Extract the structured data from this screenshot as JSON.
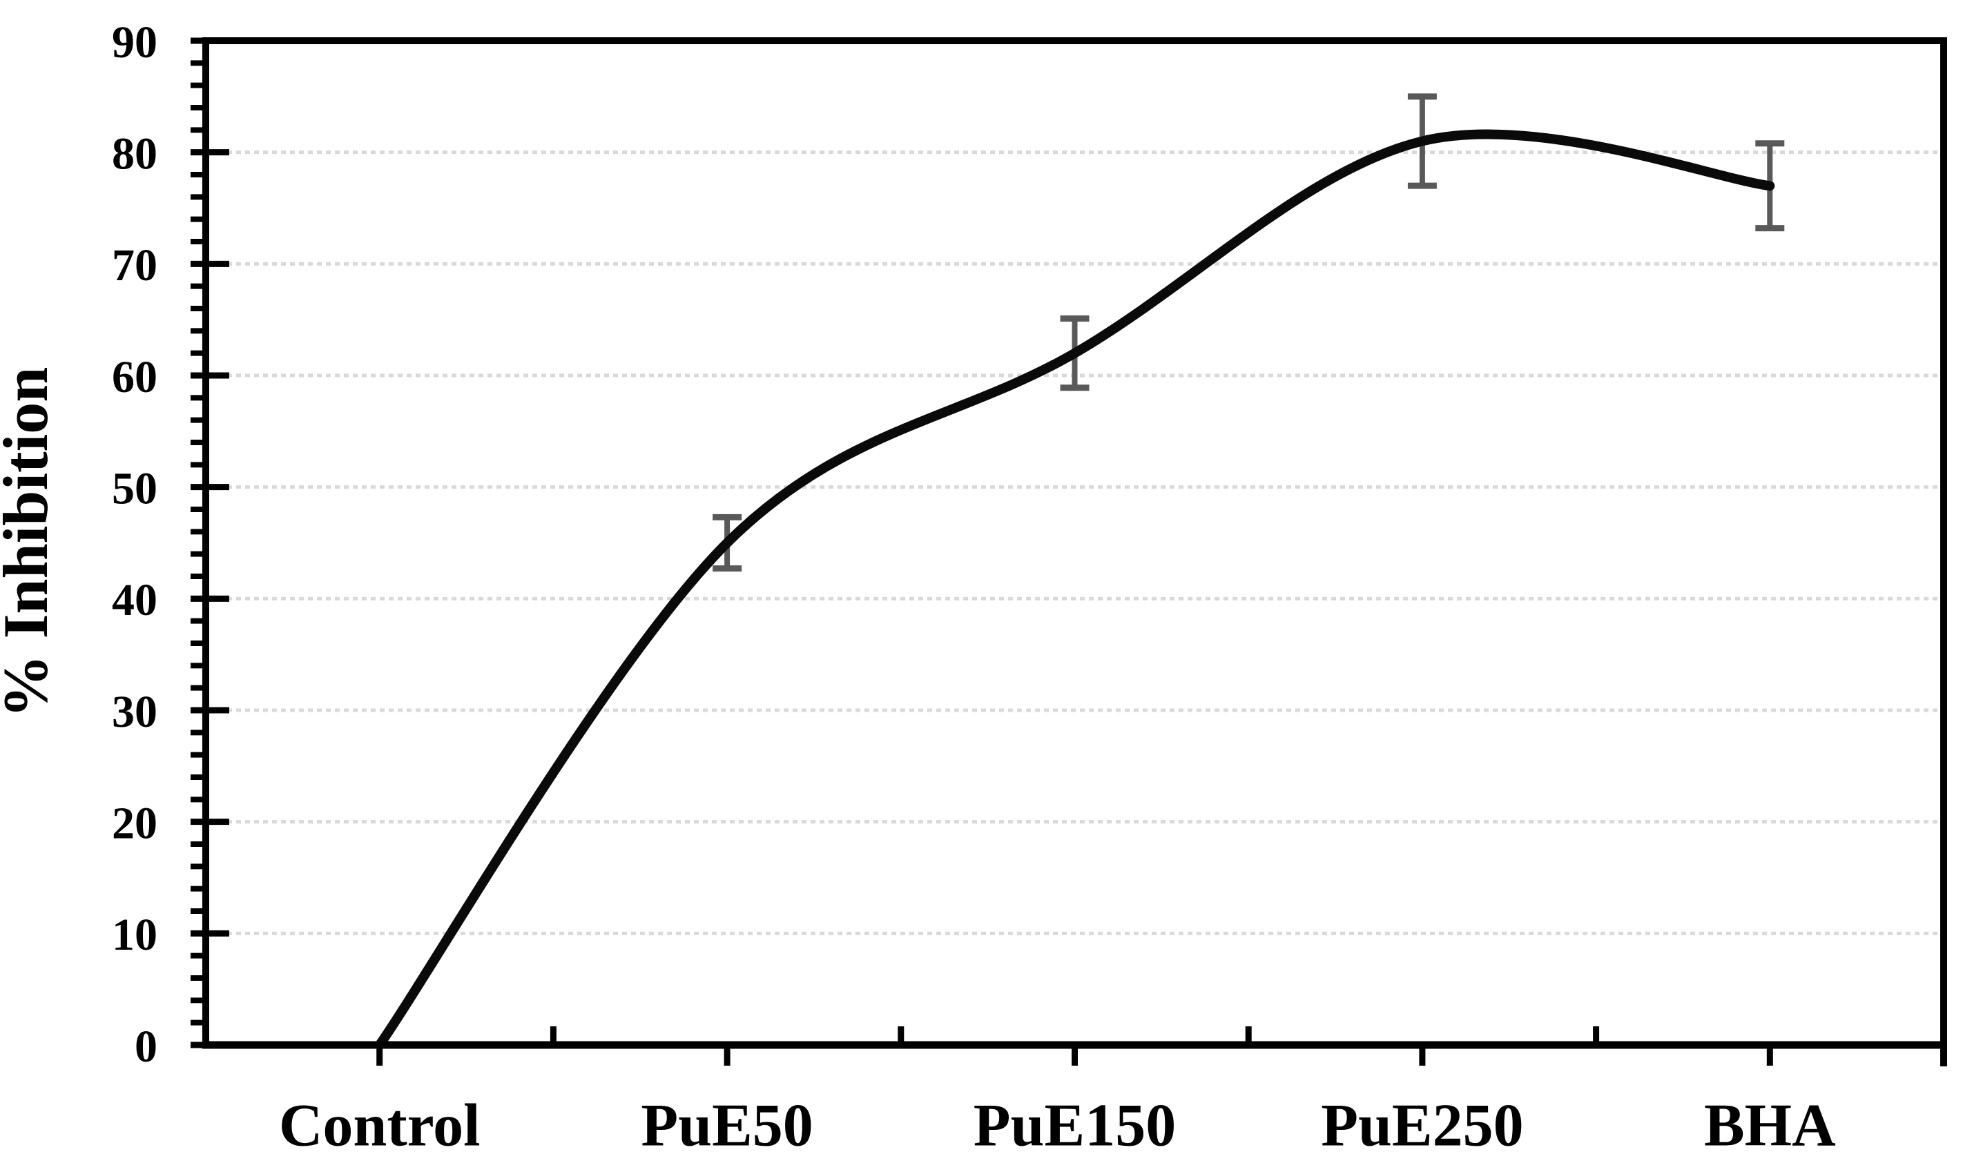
{
  "chart_data": {
    "type": "line",
    "smooth": true,
    "title": "",
    "xlabel": "",
    "ylabel": "% Inhibition",
    "categories": [
      "Control",
      "PuE50",
      "PuE150",
      "PuE250",
      "BHA"
    ],
    "series": [
      {
        "name": "% Inhibition",
        "values": [
          0,
          45,
          62,
          81,
          77
        ],
        "errors": [
          0,
          2.3,
          3.1,
          4.0,
          3.8
        ]
      }
    ],
    "ylim": [
      0,
      90
    ],
    "y_major_step": 10,
    "y_minor_step": 2,
    "grid": {
      "horizontal": true,
      "style": "dotted"
    },
    "legend_position": "none",
    "error_bars": "vertical-capped",
    "colors": {
      "line": "#0a0a0a",
      "error_bar": "#595959",
      "gridline": "#d9d9d9",
      "axis": "#000000",
      "text": "#000000",
      "background": "#ffffff"
    }
  }
}
